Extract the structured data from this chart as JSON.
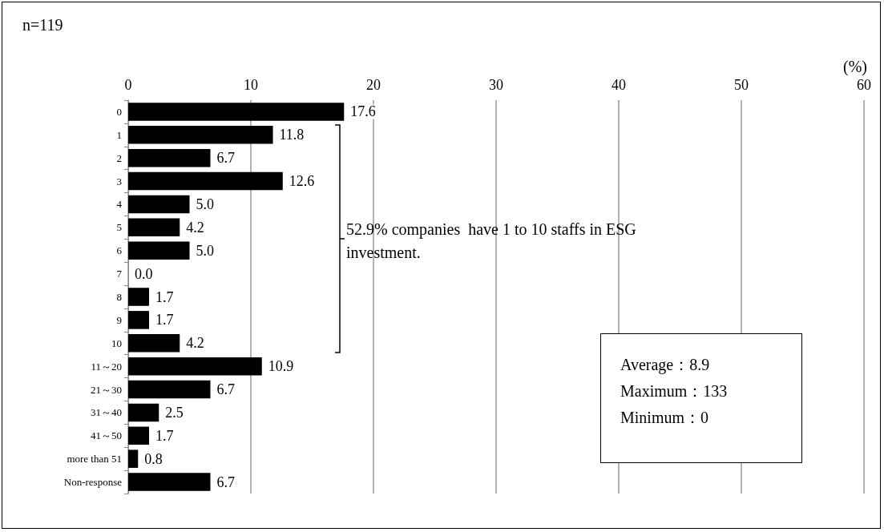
{
  "chart_data": {
    "type": "bar",
    "orientation": "horizontal",
    "xlabel": "(%)",
    "categories": [
      "0",
      "1",
      "2",
      "3",
      "4",
      "5",
      "6",
      "7",
      "8",
      "9",
      "10",
      "11～20",
      "21～30",
      "31～40",
      "41～50",
      "more than 51",
      "Non-response"
    ],
    "values": [
      17.6,
      11.8,
      6.7,
      12.6,
      5.0,
      4.2,
      5.0,
      0.0,
      1.7,
      1.7,
      4.2,
      10.9,
      6.7,
      2.5,
      1.7,
      0.8,
      6.7
    ],
    "value_labels": [
      "17.6",
      "11.8",
      "6.7",
      "12.6",
      "5.0",
      "4.2",
      "5.0",
      "0.0",
      "1.7",
      "1.7",
      "4.2",
      "10.9",
      "6.7",
      "2.5",
      "1.7",
      "0.8",
      "6.7"
    ],
    "color": "#000000",
    "xlim": [
      0,
      60
    ],
    "xticks": [
      0,
      10,
      20,
      30,
      40,
      50,
      60
    ],
    "grid": "x",
    "annotations": [
      "n=119",
      "52.9% companies  have 1 to 10 staffs in ESG investment.",
      "Average：8.9",
      "Maximum：133",
      "Minimum：0"
    ]
  }
}
